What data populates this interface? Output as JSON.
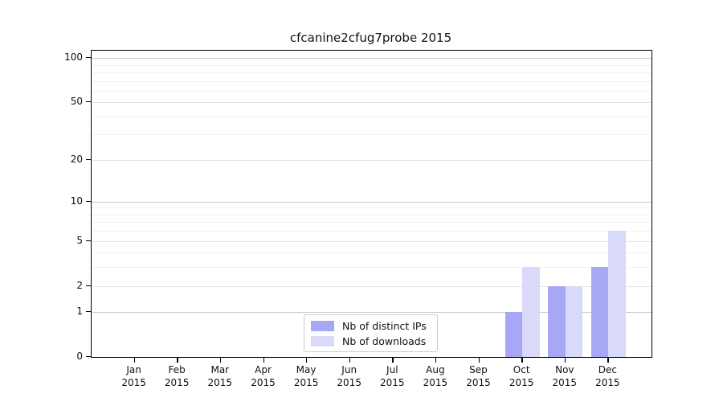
{
  "chart_data": {
    "type": "bar",
    "title": "cfcanine2cfug7probe 2015",
    "x_tick_labels": [
      {
        "month": "Jan",
        "year": "2015"
      },
      {
        "month": "Feb",
        "year": "2015"
      },
      {
        "month": "Mar",
        "year": "2015"
      },
      {
        "month": "Apr",
        "year": "2015"
      },
      {
        "month": "May",
        "year": "2015"
      },
      {
        "month": "Jun",
        "year": "2015"
      },
      {
        "month": "Jul",
        "year": "2015"
      },
      {
        "month": "Aug",
        "year": "2015"
      },
      {
        "month": "Sep",
        "year": "2015"
      },
      {
        "month": "Oct",
        "year": "2015"
      },
      {
        "month": "Nov",
        "year": "2015"
      },
      {
        "month": "Dec",
        "year": "2015"
      }
    ],
    "series": [
      {
        "name": "Nb of distinct IPs",
        "color": "#a7a7f5",
        "values": [
          0,
          0,
          0,
          0,
          0,
          0,
          0,
          0,
          0,
          1,
          2,
          3
        ]
      },
      {
        "name": "Nb of downloads",
        "color": "#d9d9f9",
        "values": [
          0,
          0,
          0,
          0,
          0,
          0,
          0,
          0,
          0,
          3,
          2,
          6
        ]
      }
    ],
    "y_axis": {
      "scale": "log1p",
      "tick_values": [
        0,
        1,
        2,
        5,
        10,
        20,
        50,
        100
      ],
      "ylim": [
        0,
        112
      ],
      "decade_grid_values": [
        1,
        10,
        100
      ],
      "labeled_grid_values": [
        2,
        5,
        20,
        50
      ],
      "minor_grid_values": [
        3,
        4,
        6,
        7,
        8,
        9,
        30,
        40,
        60,
        70,
        80,
        90
      ]
    },
    "legend": {
      "position": "lower center-left",
      "entries": [
        "Nb of distinct IPs",
        "Nb of downloads"
      ]
    },
    "grid": "horizontal"
  }
}
